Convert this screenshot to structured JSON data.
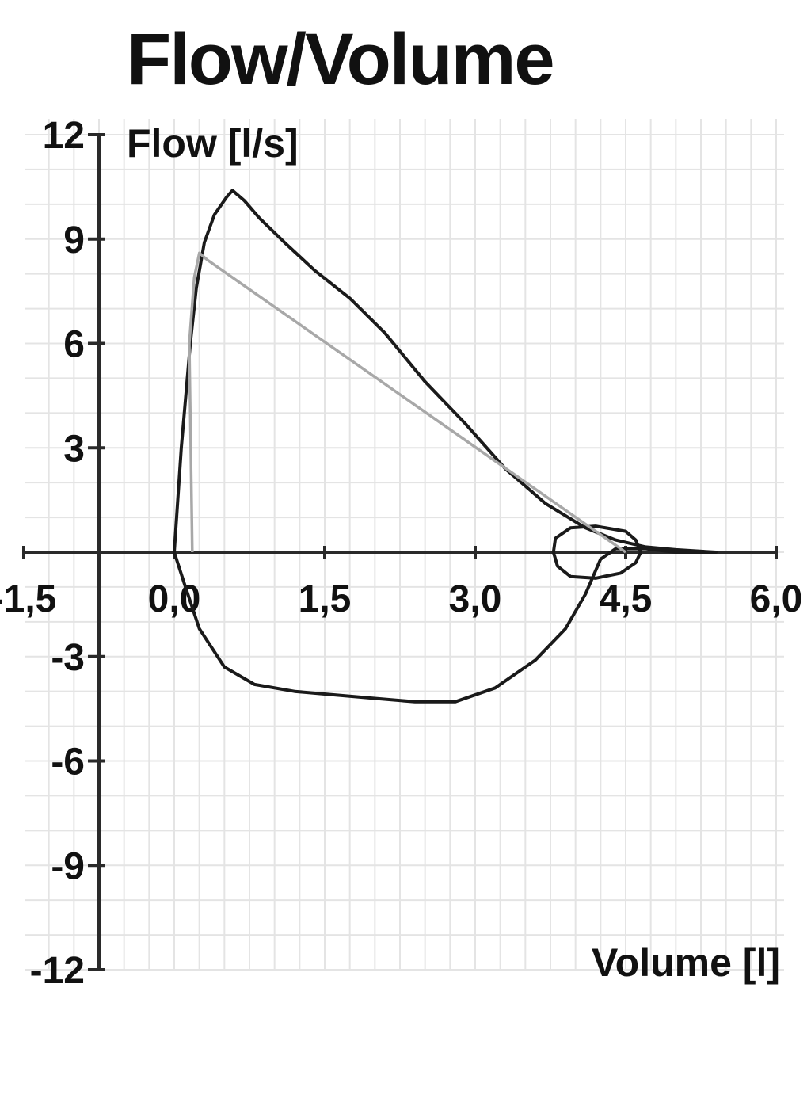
{
  "chart_data": {
    "type": "line",
    "title": "Flow/Volume",
    "xlabel": "Volume [l]",
    "ylabel": "Flow [l/s]",
    "xlim": [
      -1.5,
      6.0
    ],
    "ylim": [
      -12,
      12
    ],
    "x_ticks": [
      -1.5,
      0.0,
      1.5,
      3.0,
      4.5,
      6.0
    ],
    "x_tick_labels": [
      "-1,5",
      "0,0",
      "1,5",
      "3,0",
      "4,5",
      "6,0"
    ],
    "y_ticks": [
      12,
      9,
      6,
      3,
      0,
      -3,
      -6,
      -9,
      -12
    ],
    "y_tick_labels": [
      "12",
      "9",
      "6",
      "3",
      "",
      "-3",
      "-6",
      "-9",
      "-12"
    ],
    "grid": true,
    "series": [
      {
        "color": "#1a1a1a",
        "points": [
          [
            0.0,
            0.0
          ],
          [
            0.07,
            3.0
          ],
          [
            0.16,
            6.0
          ],
          [
            0.22,
            7.6
          ],
          [
            0.3,
            8.9
          ],
          [
            0.4,
            9.7
          ],
          [
            0.52,
            10.2
          ],
          [
            0.58,
            10.4
          ],
          [
            0.7,
            10.1
          ],
          [
            0.85,
            9.6
          ],
          [
            1.1,
            8.9
          ],
          [
            1.4,
            8.1
          ],
          [
            1.75,
            7.3
          ],
          [
            2.1,
            6.3
          ],
          [
            2.5,
            4.9
          ],
          [
            2.9,
            3.7
          ],
          [
            3.3,
            2.4
          ],
          [
            3.7,
            1.4
          ],
          [
            4.1,
            0.7
          ],
          [
            4.4,
            0.35
          ],
          [
            4.7,
            0.15
          ],
          [
            5.0,
            0.07
          ],
          [
            5.4,
            0.0
          ],
          [
            5.0,
            0.0
          ],
          [
            4.7,
            0.1
          ],
          [
            4.4,
            0.1
          ],
          [
            4.25,
            -0.2
          ],
          [
            4.1,
            -1.2
          ],
          [
            3.9,
            -2.2
          ],
          [
            3.6,
            -3.1
          ],
          [
            3.2,
            -3.9
          ],
          [
            2.8,
            -4.3
          ],
          [
            2.4,
            -4.3
          ],
          [
            2.0,
            -4.2
          ],
          [
            1.6,
            -4.1
          ],
          [
            1.2,
            -4.0
          ],
          [
            0.8,
            -3.8
          ],
          [
            0.5,
            -3.3
          ],
          [
            0.25,
            -2.2
          ],
          [
            0.1,
            -0.9
          ],
          [
            0.0,
            0.0
          ]
        ]
      },
      {
        "color": "#1a1a1a",
        "points": [
          [
            4.5,
            0.6
          ],
          [
            4.2,
            0.75
          ],
          [
            3.95,
            0.7
          ],
          [
            3.8,
            0.4
          ],
          [
            3.78,
            0.0
          ],
          [
            3.82,
            -0.4
          ],
          [
            3.95,
            -0.7
          ],
          [
            4.2,
            -0.75
          ],
          [
            4.45,
            -0.6
          ],
          [
            4.6,
            -0.3
          ],
          [
            4.65,
            0.0
          ],
          [
            4.6,
            0.35
          ],
          [
            4.5,
            0.6
          ]
        ]
      },
      {
        "color": "#a8a8a8",
        "points": [
          [
            0.18,
            0.0
          ],
          [
            0.15,
            6.0
          ],
          [
            0.2,
            7.9
          ],
          [
            0.25,
            8.6
          ],
          [
            0.33,
            8.4
          ],
          [
            4.5,
            0.0
          ]
        ]
      }
    ]
  }
}
